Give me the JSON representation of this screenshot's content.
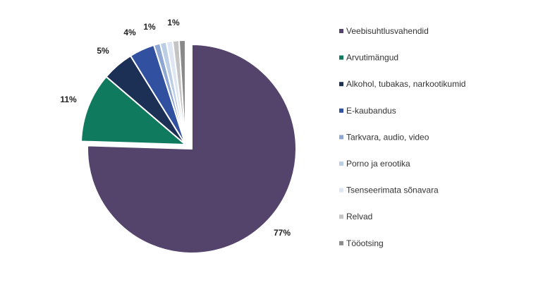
{
  "chart_data": {
    "type": "pie",
    "categories": [
      "Veebisuhtlusvahendid",
      "Arvutimängud",
      "Alkohol, tubakas, narkootikumid",
      "E-kaubandus",
      "Tarkvara, audio, video",
      "Porno ja erootika",
      "Tsenseerimata sõnavara",
      "Relvad",
      "Tööotsing"
    ],
    "values": [
      77,
      11,
      5,
      4,
      1,
      1,
      1,
      1,
      1
    ],
    "data_labels": [
      "77%",
      "11%",
      "5%",
      "4%",
      "1%",
      "",
      "1%",
      "",
      ""
    ],
    "colors": [
      "#54436b",
      "#107a5e",
      "#1c2f55",
      "#3150a0",
      "#8ea6d4",
      "#bccde6",
      "#dde6f2",
      "#c4c4c4",
      "#8a8a8a"
    ],
    "title": "",
    "legend": "right",
    "exploded_slice": "Veebisuhtlusvahendid"
  }
}
